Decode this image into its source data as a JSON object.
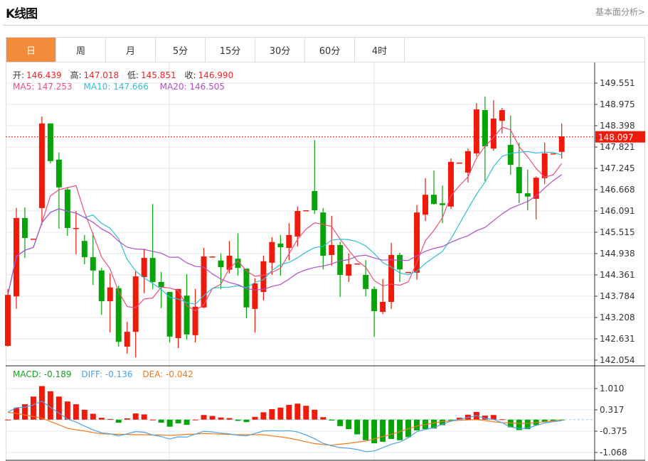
{
  "header": {
    "title": "K线图",
    "link": "基本面分析>"
  },
  "tabs": [
    {
      "label": "日",
      "active": true
    },
    {
      "label": "周"
    },
    {
      "label": "月"
    },
    {
      "label": "5分"
    },
    {
      "label": "15分"
    },
    {
      "label": "30分"
    },
    {
      "label": "60分"
    },
    {
      "label": "4时"
    }
  ],
  "ohlc_info": {
    "open_label": "开:",
    "open": "146.439",
    "high_label": "高:",
    "high": "147.018",
    "low_label": "低:",
    "low": "145.851",
    "close_label": "收:",
    "close": "146.990"
  },
  "ma_info": {
    "ma5": "MA5: 147.253",
    "ma10": "MA10: 147.666",
    "ma20": "MA20: 146.505"
  },
  "macd_info": {
    "macd": "MACD: -0.189",
    "diff": "DIFF: -0.136",
    "dea": "DEA: -0.042"
  },
  "colors": {
    "up": "#f01a0a",
    "down": "#06a406",
    "ma5": "#e8507a",
    "ma10": "#2dbfd6",
    "ma20": "#b04fc8",
    "diff": "#4aa3ea",
    "dea": "#f07a1a",
    "active_tab": "#f28c3c"
  },
  "chart_data": [
    {
      "type": "candlestick",
      "title": "",
      "ylim": [
        142.054,
        149.551
      ],
      "yticks": [
        "149.551",
        "148.975",
        "148.398",
        "147.821",
        "147.245",
        "146.668",
        "146.091",
        "145.515",
        "144.938",
        "144.361",
        "143.784",
        "143.208",
        "142.631",
        "142.054"
      ],
      "last_price": "148.097",
      "ma_periods": [
        5,
        10,
        20
      ],
      "candles": [
        [
          142.44,
          143.98,
          142.42,
          143.82
        ],
        [
          143.78,
          146.17,
          143.44,
          145.9
        ],
        [
          145.9,
          146.19,
          144.82,
          145.36
        ],
        [
          145.34,
          145.34,
          145.34,
          145.34
        ],
        [
          146.17,
          148.65,
          145.71,
          148.46
        ],
        [
          148.46,
          148.46,
          147.38,
          147.44
        ],
        [
          147.48,
          147.67,
          145.61,
          146.73
        ],
        [
          146.67,
          146.74,
          145.42,
          145.63
        ],
        [
          145.63,
          146.09,
          144.92,
          145.63
        ],
        [
          145.28,
          145.44,
          144.65,
          144.84
        ],
        [
          144.84,
          145.51,
          144.09,
          144.48
        ],
        [
          144.48,
          144.55,
          143.28,
          143.65
        ],
        [
          143.65,
          144.4,
          142.8,
          144.02
        ],
        [
          144.0,
          144.07,
          142.42,
          142.55
        ],
        [
          142.42,
          143.09,
          142.23,
          142.82
        ],
        [
          142.82,
          144.46,
          142.13,
          144.32
        ],
        [
          144.3,
          145.07,
          143.86,
          144.82
        ],
        [
          144.82,
          146.28,
          143.98,
          144.17
        ],
        [
          144.17,
          144.44,
          143.46,
          144.03
        ],
        [
          143.9,
          143.9,
          142.53,
          142.69
        ],
        [
          142.65,
          143.98,
          142.38,
          143.98
        ],
        [
          143.8,
          144.38,
          142.61,
          142.75
        ],
        [
          142.73,
          143.98,
          142.53,
          143.5
        ],
        [
          143.48,
          145.09,
          143.46,
          144.86
        ],
        [
          144.86,
          144.86,
          144.86,
          144.86
        ],
        [
          144.75,
          144.94,
          143.98,
          144.57
        ],
        [
          144.5,
          145.28,
          144.4,
          144.88
        ],
        [
          144.8,
          145.48,
          144.34,
          144.55
        ],
        [
          144.53,
          144.53,
          143.19,
          143.48
        ],
        [
          143.44,
          144.27,
          142.8,
          144.13
        ],
        [
          143.9,
          144.88,
          143.67,
          144.73
        ],
        [
          144.69,
          145.38,
          144.36,
          145.25
        ],
        [
          145.21,
          145.44,
          144.34,
          145.11
        ],
        [
          145.09,
          145.76,
          144.75,
          145.44
        ],
        [
          145.4,
          146.21,
          145.13,
          146.09
        ],
        [
          146.11,
          146.11,
          146.11,
          146.11
        ],
        [
          146.63,
          148.01,
          146.01,
          146.11
        ],
        [
          146.05,
          146.17,
          144.51,
          144.88
        ],
        [
          144.9,
          145.96,
          144.61,
          145.17
        ],
        [
          145.17,
          145.26,
          143.77,
          144.36
        ],
        [
          144.34,
          144.94,
          144.17,
          144.65
        ],
        [
          144.67,
          144.67,
          144.67,
          144.67
        ],
        [
          144.36,
          144.76,
          143.78,
          143.98
        ],
        [
          143.98,
          144.05,
          142.69,
          143.38
        ],
        [
          143.36,
          144.25,
          143.3,
          143.63
        ],
        [
          143.63,
          145.23,
          143.44,
          144.9
        ],
        [
          144.9,
          144.96,
          144.17,
          144.51
        ],
        [
          144.44,
          144.44,
          144.44,
          144.44
        ],
        [
          144.42,
          146.25,
          144.23,
          146.05
        ],
        [
          145.99,
          146.98,
          145.82,
          146.53
        ],
        [
          146.53,
          147.19,
          146.26,
          146.28
        ],
        [
          146.3,
          146.78,
          145.76,
          146.25
        ],
        [
          146.21,
          147.51,
          146.15,
          147.42
        ],
        [
          147.4,
          147.4,
          147.4,
          147.4
        ],
        [
          147.13,
          147.78,
          146.86,
          147.71
        ],
        [
          147.65,
          149.01,
          147.57,
          148.84
        ],
        [
          148.82,
          149.19,
          146.9,
          147.84
        ],
        [
          147.78,
          149.09,
          147.72,
          148.59
        ],
        [
          148.53,
          148.88,
          148.19,
          148.82
        ],
        [
          147.88,
          148.67,
          147.07,
          147.34
        ],
        [
          147.28,
          147.94,
          146.3,
          146.57
        ],
        [
          146.57,
          147.21,
          146.11,
          146.48
        ],
        [
          146.42,
          147.03,
          145.86,
          146.99
        ],
        [
          146.98,
          147.94,
          146.82,
          147.65
        ],
        [
          147.65,
          147.65,
          147.65,
          147.65
        ],
        [
          147.69,
          148.46,
          147.51,
          148.11
        ]
      ]
    },
    {
      "type": "bar+line",
      "title": "",
      "ylim": [
        -1.068,
        1.01
      ],
      "yticks": [
        "1.010",
        "0.317",
        "-0.375",
        "-1.068"
      ],
      "macd": [
        0.0,
        0.38,
        0.5,
        0.75,
        1.09,
        0.92,
        0.75,
        0.59,
        0.5,
        0.32,
        0.19,
        0.06,
        0.02,
        -0.1,
        0.04,
        0.2,
        0.17,
        0.0,
        -0.1,
        -0.23,
        -0.12,
        -0.17,
        0.0,
        0.15,
        0.12,
        0.07,
        0.05,
        -0.04,
        -0.08,
        0.09,
        0.24,
        0.34,
        0.39,
        0.48,
        0.52,
        0.45,
        0.32,
        0.08,
        -0.03,
        -0.21,
        -0.31,
        -0.48,
        -0.67,
        -0.77,
        -0.72,
        -0.63,
        -0.67,
        -0.57,
        -0.35,
        -0.31,
        -0.29,
        -0.18,
        -0.02,
        0.06,
        0.16,
        0.25,
        0.13,
        0.15,
        0.01,
        -0.25,
        -0.34,
        -0.31,
        -0.18,
        -0.08,
        -0.05,
        -0.01
      ],
      "diff": [
        0.24,
        0.39,
        0.4,
        0.48,
        0.6,
        0.4,
        0.21,
        0.02,
        -0.08,
        -0.21,
        -0.33,
        -0.43,
        -0.46,
        -0.53,
        -0.46,
        -0.39,
        -0.41,
        -0.5,
        -0.55,
        -0.63,
        -0.56,
        -0.57,
        -0.47,
        -0.38,
        -0.4,
        -0.44,
        -0.46,
        -0.51,
        -0.53,
        -0.45,
        -0.37,
        -0.36,
        -0.37,
        -0.36,
        -0.4,
        -0.5,
        -0.62,
        -0.77,
        -0.85,
        -0.91,
        -0.93,
        -0.97,
        -1.04,
        -1.02,
        -0.91,
        -0.8,
        -0.73,
        -0.59,
        -0.39,
        -0.32,
        -0.26,
        -0.15,
        -0.05,
        0.01,
        0.07,
        0.13,
        0.04,
        0.01,
        -0.1,
        -0.24,
        -0.29,
        -0.28,
        -0.19,
        -0.11,
        -0.07,
        -0.03
      ],
      "dea": [
        0.24,
        0.2,
        0.15,
        0.1,
        0.05,
        -0.06,
        -0.17,
        -0.28,
        -0.33,
        -0.37,
        -0.42,
        -0.46,
        -0.47,
        -0.48,
        -0.48,
        -0.49,
        -0.49,
        -0.5,
        -0.5,
        -0.51,
        -0.5,
        -0.48,
        -0.47,
        -0.45,
        -0.46,
        -0.47,
        -0.48,
        -0.49,
        -0.49,
        -0.49,
        -0.49,
        -0.53,
        -0.56,
        -0.6,
        -0.66,
        -0.72,
        -0.78,
        -0.81,
        -0.83,
        -0.8,
        -0.77,
        -0.73,
        -0.7,
        -0.63,
        -0.55,
        -0.48,
        -0.39,
        -0.3,
        -0.21,
        -0.16,
        -0.11,
        -0.06,
        -0.04,
        -0.02,
        -0.01,
        0.0,
        -0.03,
        -0.07,
        -0.1,
        -0.11,
        -0.12,
        -0.12,
        -0.1,
        -0.07,
        -0.04,
        -0.02
      ]
    }
  ]
}
